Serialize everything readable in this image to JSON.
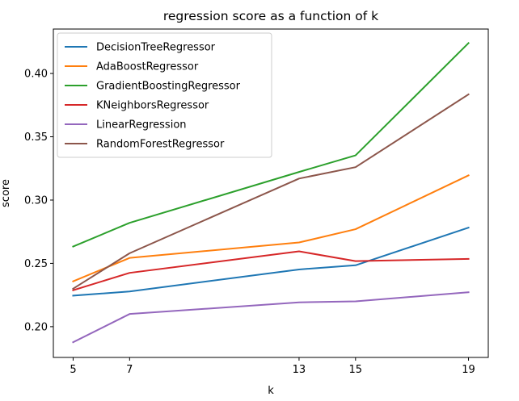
{
  "chart_data": {
    "type": "line",
    "title": "regression score as a function of k",
    "xlabel": "k",
    "ylabel": "score",
    "x": [
      5,
      7,
      13,
      15,
      19
    ],
    "xlim": [
      4.3,
      19.7
    ],
    "ylim": [
      0.1757,
      0.4351
    ],
    "xticks": [
      5,
      7,
      13,
      15,
      19
    ],
    "yticks": [
      0.2,
      0.25,
      0.3,
      0.35,
      0.4
    ],
    "ytick_labels": [
      "0.20",
      "0.25",
      "0.30",
      "0.35",
      "0.40"
    ],
    "grid": false,
    "legend_position": "upper-left",
    "series": [
      {
        "name": "DecisionTreeRegressor",
        "color": "#1f77b4",
        "values": [
          0.2245,
          0.2278,
          0.2452,
          0.2485,
          0.2782
        ]
      },
      {
        "name": "AdaBoostRegressor",
        "color": "#ff7f0e",
        "values": [
          0.2358,
          0.2543,
          0.2665,
          0.277,
          0.3195
        ]
      },
      {
        "name": "GradientBoostingRegressor",
        "color": "#2ca02c",
        "values": [
          0.2633,
          0.282,
          0.3222,
          0.3353,
          0.424
        ]
      },
      {
        "name": "KNeighborsRegressor",
        "color": "#d62728",
        "values": [
          0.2288,
          0.2425,
          0.2595,
          0.2518,
          0.2535
        ]
      },
      {
        "name": "LinearRegression",
        "color": "#9467bd",
        "values": [
          0.1877,
          0.21,
          0.2192,
          0.22,
          0.2272
        ]
      },
      {
        "name": "RandomForestRegressor",
        "color": "#8c564b",
        "values": [
          0.23,
          0.258,
          0.317,
          0.326,
          0.3835
        ]
      }
    ]
  }
}
